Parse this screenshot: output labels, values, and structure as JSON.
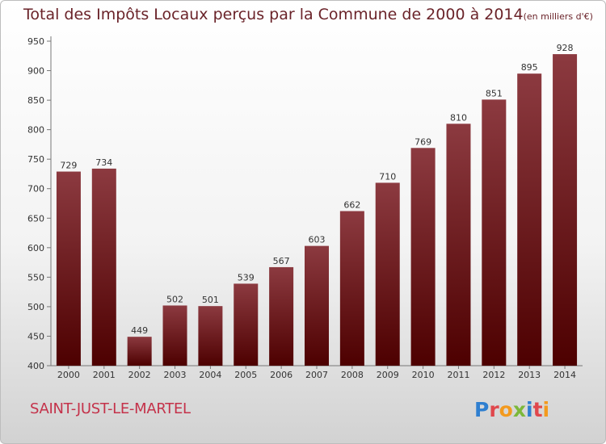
{
  "title": "Total des Impôts Locaux perçus par la Commune de 2000 à 2014",
  "unit_note": "(en milliers d'€)",
  "commune": "SAINT-JUST-LE-MARTEL",
  "brand": "Proxiti",
  "colors": {
    "title": "#6a2329",
    "bar_dark": "#4d0000",
    "bar_light": "#8c3a40",
    "commune": "#c4324a"
  },
  "chart_data": {
    "type": "bar",
    "title": "Total des Impôts Locaux perçus par la Commune de 2000 à 2014",
    "xlabel": "",
    "ylabel": "",
    "categories": [
      "2000",
      "2001",
      "2002",
      "2003",
      "2004",
      "2005",
      "2006",
      "2007",
      "2008",
      "2009",
      "2010",
      "2011",
      "2012",
      "2013",
      "2014"
    ],
    "values": [
      729,
      734,
      449,
      502,
      501,
      539,
      567,
      603,
      662,
      710,
      769,
      810,
      851,
      895,
      928
    ],
    "ylim": [
      400,
      950
    ],
    "yticks": [
      400,
      450,
      500,
      550,
      600,
      650,
      700,
      750,
      800,
      850,
      900,
      950
    ],
    "grid": false,
    "legend": "none"
  }
}
